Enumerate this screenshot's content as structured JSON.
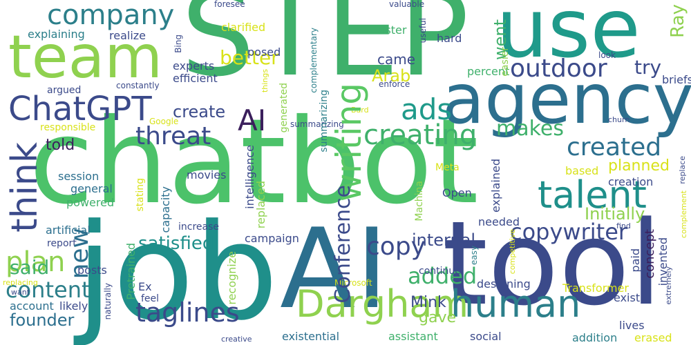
{
  "palette": {
    "dark_purple": "#3b1f5c",
    "indigo": "#3b4a8a",
    "slate": "#4a5a8a",
    "teal_blue": "#2c6f8e",
    "teal": "#1f8f8a",
    "green": "#3fb06b",
    "lime": "#8fd14f",
    "yellow": "#d8e219"
  },
  "words": [
    {
      "id": "step",
      "text": "STEP",
      "color": "#3fb06b"
    },
    {
      "id": "chatbot",
      "text": "chatbot",
      "color": "#4cc26a"
    },
    {
      "id": "job",
      "text": "job",
      "color": "#1f8f8a"
    },
    {
      "id": "ai-big",
      "text": "AI",
      "color": "#2c6f8e"
    },
    {
      "id": "tool",
      "text": "tool",
      "color": "#3b4a8a"
    },
    {
      "id": "use",
      "text": "use",
      "color": "#1f9a8a"
    },
    {
      "id": "team",
      "text": "team",
      "color": "#8fd14f"
    },
    {
      "id": "agency",
      "text": "agency",
      "color": "#2c6f8e"
    },
    {
      "id": "company",
      "text": "company",
      "color": "#2c7f8a"
    },
    {
      "id": "chatgpt",
      "text": "ChatGPT",
      "color": "#3b4a8a"
    },
    {
      "id": "ai-mid",
      "text": "AI",
      "color": "#3b1f5c"
    },
    {
      "id": "think",
      "text": "think",
      "color": "#3b4a8a"
    },
    {
      "id": "dargham",
      "text": "Dargham",
      "color": "#8fd14f"
    },
    {
      "id": "human",
      "text": "human",
      "color": "#2c7f8a"
    },
    {
      "id": "talent",
      "text": "talent",
      "color": "#1f8f8a"
    },
    {
      "id": "writing",
      "text": "writing",
      "color": "#5ac864"
    },
    {
      "id": "ads",
      "text": "ads",
      "color": "#1f9a8a"
    },
    {
      "id": "creating",
      "text": "creating",
      "color": "#3fb06b"
    },
    {
      "id": "threat",
      "text": "threat",
      "color": "#3b4a8a"
    },
    {
      "id": "outdoor",
      "text": "outdoor",
      "color": "#3b4a8a"
    },
    {
      "id": "created",
      "text": "created",
      "color": "#2c6f8e"
    },
    {
      "id": "makes",
      "text": "makes",
      "color": "#3fb06b"
    },
    {
      "id": "content",
      "text": "content",
      "color": "#2c7f8a"
    },
    {
      "id": "taglines",
      "text": "taglines",
      "color": "#3b4a8a"
    },
    {
      "id": "copywriter",
      "text": "copywriter",
      "color": "#3b4a8a"
    },
    {
      "id": "copy",
      "text": "copy",
      "color": "#3b4a8a"
    },
    {
      "id": "plan",
      "text": "plan",
      "color": "#8fd14f"
    },
    {
      "id": "new",
      "text": "new",
      "color": "#2c6f8e"
    },
    {
      "id": "said",
      "text": "said",
      "color": "#3fb06b"
    },
    {
      "id": "added",
      "text": "added",
      "color": "#3fb06b"
    },
    {
      "id": "satisfied",
      "text": "satisfied",
      "color": "#1f8f8a"
    },
    {
      "id": "conference",
      "text": "Conference",
      "color": "#3b4a8a"
    },
    {
      "id": "founder",
      "text": "founder",
      "color": "#2c6f8e"
    },
    {
      "id": "went",
      "text": "went",
      "color": "#3fb06b"
    },
    {
      "id": "ray",
      "text": "Ray",
      "color": "#8fd14f"
    },
    {
      "id": "better",
      "text": "better",
      "color": "#d8e219"
    },
    {
      "id": "came",
      "text": "came",
      "color": "#3b4a8a"
    },
    {
      "id": "arab",
      "text": "Arab",
      "color": "#d8e219"
    },
    {
      "id": "try",
      "text": "try",
      "color": "#3b4a8a"
    },
    {
      "id": "create",
      "text": "create",
      "color": "#3b4a8a"
    },
    {
      "id": "told",
      "text": "told",
      "color": "#3b1f5c"
    },
    {
      "id": "planned",
      "text": "planned",
      "color": "#d8e219"
    },
    {
      "id": "initially",
      "text": "Initially",
      "color": "#8fd14f"
    },
    {
      "id": "internal",
      "text": "internal",
      "color": "#3b4a8a"
    },
    {
      "id": "mink",
      "text": "Mink",
      "color": "#3b4a8a"
    },
    {
      "id": "gave",
      "text": "gave",
      "color": "#8fd14f"
    },
    {
      "id": "posed",
      "text": "posed",
      "color": "#3b4a8a"
    },
    {
      "id": "faster",
      "text": "faster",
      "color": "#3fb06b"
    },
    {
      "id": "hard",
      "text": "hard",
      "color": "#3b4a8a"
    },
    {
      "id": "explaining",
      "text": "explaining",
      "color": "#2c7f8a"
    },
    {
      "id": "realize",
      "text": "realize",
      "color": "#3b4a8a"
    },
    {
      "id": "experts",
      "text": "experts",
      "color": "#3b4a8a"
    },
    {
      "id": "efficient",
      "text": "efficient",
      "color": "#3b4a8a"
    },
    {
      "id": "argued",
      "text": "argued",
      "color": "#3b4a8a"
    },
    {
      "id": "responsible",
      "text": "responsible",
      "color": "#d8e219"
    },
    {
      "id": "session",
      "text": "session",
      "color": "#2c6f8e"
    },
    {
      "id": "general",
      "text": "general",
      "color": "#2c6f8e"
    },
    {
      "id": "powered",
      "text": "powered",
      "color": "#3fb06b"
    },
    {
      "id": "artificial",
      "text": "artificial",
      "color": "#2c6f8e"
    },
    {
      "id": "report",
      "text": "report",
      "color": "#3b4a8a"
    },
    {
      "id": "posts",
      "text": "posts",
      "color": "#3b4a8a"
    },
    {
      "id": "account",
      "text": "account",
      "color": "#2c6f8e"
    },
    {
      "id": "likely",
      "text": "likely",
      "color": "#3b4a8a"
    },
    {
      "id": "movies",
      "text": "movies",
      "color": "#3b4a8a"
    },
    {
      "id": "capacity",
      "text": "capacity",
      "color": "#2c6f8e"
    },
    {
      "id": "stating",
      "text": "stating",
      "color": "#d8e219"
    },
    {
      "id": "intelligence",
      "text": "intelligence",
      "color": "#3b4a8a"
    },
    {
      "id": "replaced",
      "text": "replaced",
      "color": "#8fd14f"
    },
    {
      "id": "increase",
      "text": "increase",
      "color": "#3b4a8a"
    },
    {
      "id": "campaign",
      "text": "campaign",
      "color": "#3b4a8a"
    },
    {
      "id": "recognize",
      "text": "recognize",
      "color": "#8fd14f"
    },
    {
      "id": "pretrained",
      "text": "Pretrained",
      "color": "#3fb06b"
    },
    {
      "id": "ex",
      "text": "Ex",
      "color": "#3b4a8a"
    },
    {
      "id": "feel",
      "text": "feel",
      "color": "#3b4a8a"
    },
    {
      "id": "existential",
      "text": "existential",
      "color": "#2c6f8e"
    },
    {
      "id": "assistant",
      "text": "assistant",
      "color": "#3fb06b"
    },
    {
      "id": "social",
      "text": "social",
      "color": "#3b4a8a"
    },
    {
      "id": "designing",
      "text": "designing",
      "color": "#3b4a8a"
    },
    {
      "id": "continue",
      "text": "continue",
      "color": "#3b4a8a"
    },
    {
      "id": "needed",
      "text": "needed",
      "color": "#3b4a8a"
    },
    {
      "id": "open",
      "text": "Open",
      "color": "#3b4a8a"
    },
    {
      "id": "meta",
      "text": "Meta",
      "color": "#d8e219"
    },
    {
      "id": "machina",
      "text": "Machina",
      "color": "#8fd14f"
    },
    {
      "id": "explained",
      "text": "explained",
      "color": "#3b4a8a"
    },
    {
      "id": "based",
      "text": "based",
      "color": "#d8e219"
    },
    {
      "id": "creation",
      "text": "creation",
      "color": "#3b4a8a"
    },
    {
      "id": "paid",
      "text": "paid",
      "color": "#3b4a8a"
    },
    {
      "id": "concept",
      "text": "concept",
      "color": "#3b1f5c"
    },
    {
      "id": "invented",
      "text": "invented",
      "color": "#3b4a8a"
    },
    {
      "id": "exist",
      "text": "exist",
      "color": "#3b4a8a"
    },
    {
      "id": "lives",
      "text": "lives",
      "color": "#3b4a8a"
    },
    {
      "id": "transformer",
      "text": "Transformer",
      "color": "#d8e219"
    },
    {
      "id": "addition",
      "text": "addition",
      "color": "#2c7f8a"
    },
    {
      "id": "erased",
      "text": "erased",
      "color": "#d8e219"
    },
    {
      "id": "microsoft",
      "text": "Microsoft",
      "color": "#d8e219"
    },
    {
      "id": "easy",
      "text": "easy",
      "color": "#2c7f8a"
    },
    {
      "id": "creative",
      "text": "creative",
      "color": "#3b4a8a"
    },
    {
      "id": "naturally",
      "text": "naturally",
      "color": "#3b4a8a"
    },
    {
      "id": "want",
      "text": "want",
      "color": "#3b4a8a"
    },
    {
      "id": "replacing",
      "text": "replacing",
      "color": "#d8e219"
    },
    {
      "id": "foresee",
      "text": "foresee",
      "color": "#3b4a8a"
    },
    {
      "id": "valuable",
      "text": "valuable",
      "color": "#3b4a8a"
    },
    {
      "id": "clarified",
      "text": "clarified",
      "color": "#d8e219"
    },
    {
      "id": "bing",
      "text": "Bing",
      "color": "#3b4a8a"
    },
    {
      "id": "constantly",
      "text": "constantly",
      "color": "#3b4a8a"
    },
    {
      "id": "google",
      "text": "Google",
      "color": "#d8e219"
    },
    {
      "id": "things",
      "text": "things",
      "color": "#d8e219"
    },
    {
      "id": "enforce",
      "text": "enforce",
      "color": "#3b4a8a"
    },
    {
      "id": "complementary",
      "text": "complementary",
      "color": "#2c7f8a"
    },
    {
      "id": "generated",
      "text": "generated",
      "color": "#8fd14f"
    },
    {
      "id": "summarizing",
      "text": "summarizing",
      "color": "#2c7f8a"
    },
    {
      "id": "bard",
      "text": "Bard",
      "color": "#3b4a8a"
    },
    {
      "id": "useful",
      "text": "useful",
      "color": "#d8e219"
    },
    {
      "id": "easier",
      "text": "easier",
      "color": "#3b4a8a"
    },
    {
      "id": "percent",
      "text": "percent",
      "color": "#8fd14f"
    },
    {
      "id": "briefs",
      "text": "briefs",
      "color": "#3fb06b"
    },
    {
      "id": "look",
      "text": "look",
      "color": "#3b4a8a"
    },
    {
      "id": "churn",
      "text": "churn",
      "color": "#3b4a8a"
    },
    {
      "id": "replace",
      "text": "replace",
      "color": "#3b4a8a"
    },
    {
      "id": "complement",
      "text": "complement",
      "color": "#3b4a8a"
    },
    {
      "id": "find",
      "text": "find",
      "color": "#d8e219"
    },
    {
      "id": "extremely",
      "text": "extremely",
      "color": "#3b4a8a"
    },
    {
      "id": "competitive",
      "text": "competitive",
      "color": "#3b4a8a"
    },
    {
      "id": "creativity",
      "text": "creativity",
      "color": "#d8e219"
    }
  ]
}
